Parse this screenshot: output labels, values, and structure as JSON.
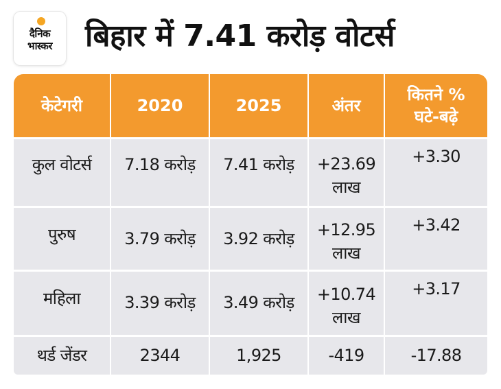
{
  "logo": {
    "line1": "दैनिक",
    "line2": "भास्कर"
  },
  "title": "बिहार में 7.41 करोड़ वोटर्स",
  "table": {
    "headers": [
      "केटेगरी",
      "2020",
      "2025",
      "अंतर",
      "कितने % घटे-बढ़े"
    ],
    "rows": [
      {
        "category": "कुल वोटर्स",
        "y2020": "7.18 करोड़",
        "y2025": "7.41 करोड़",
        "diff_value": "+23.69",
        "diff_unit": "लाख",
        "pct": "+3.30"
      },
      {
        "category": "पुरुष",
        "y2020": "3.79 करोड़",
        "y2025": "3.92 करोड़",
        "diff_value": "+12.95",
        "diff_unit": "लाख",
        "pct": "+3.42"
      },
      {
        "category": "महिला",
        "y2020": "3.39 करोड़",
        "y2025": "3.49 करोड़",
        "diff_value": "+10.74",
        "diff_unit": "लाख",
        "pct": "+3.17"
      },
      {
        "category": "थर्ड जेंडर",
        "y2020": "2344",
        "y2025": "1,925",
        "diff_value": "-419",
        "diff_unit": "",
        "pct": "-17.88"
      }
    ]
  },
  "colors": {
    "header_bg": "#f39a2e",
    "row_bg": "#e7e7eb",
    "logo_accent": "#f5a623"
  }
}
